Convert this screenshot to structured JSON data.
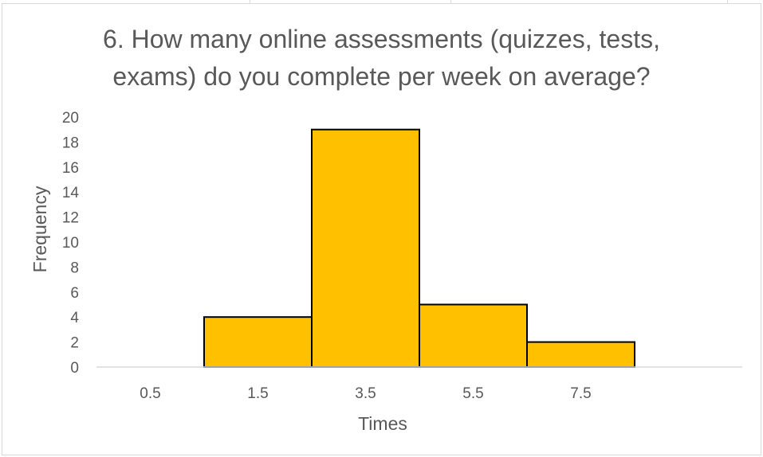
{
  "chart_data": {
    "type": "bar",
    "title_lines": [
      "6. How many online assessments (quizzes, tests,",
      "exams) do you complete per week on average?"
    ],
    "xlabel": "Times",
    "ylabel": "Frequency",
    "categories": [
      "0.5",
      "1.5",
      "3.5",
      "5.5",
      "7.5"
    ],
    "values": [
      0,
      4,
      19,
      5,
      2
    ],
    "ylim": [
      0,
      20
    ],
    "yticks": [
      0,
      2,
      4,
      6,
      8,
      10,
      12,
      14,
      16,
      18,
      20
    ],
    "grid": false,
    "legend": "none",
    "bar_color": "#FFC000",
    "bar_edge_color": "#000000",
    "text_color": "#595959",
    "axis_color": "#D9D9D9"
  }
}
